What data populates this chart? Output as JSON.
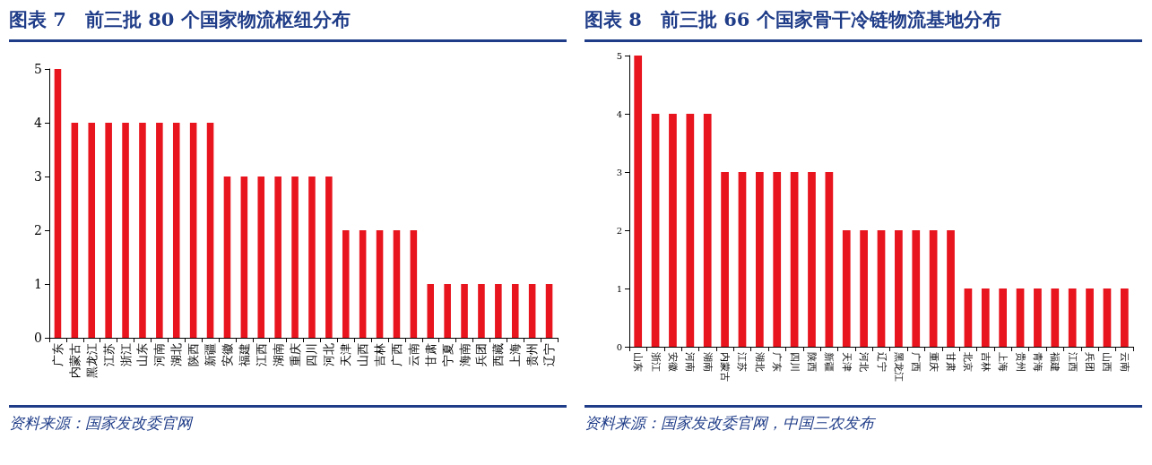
{
  "chart_data": [
    {
      "type": "bar",
      "title": "图表 7　前三批 80 个国家物流枢纽分布",
      "categories": [
        "广东",
        "内蒙古",
        "黑龙江",
        "江苏",
        "浙江",
        "山东",
        "河南",
        "湖北",
        "陕西",
        "新疆",
        "安徽",
        "福建",
        "江西",
        "湖南",
        "重庆",
        "四川",
        "河北",
        "天津",
        "山西",
        "吉林",
        "广西",
        "云南",
        "甘肃",
        "宁夏",
        "海南",
        "兵团",
        "西藏",
        "上海",
        "贵州",
        "辽宁"
      ],
      "values": [
        5,
        4,
        4,
        4,
        4,
        4,
        4,
        4,
        4,
        4,
        3,
        3,
        3,
        3,
        3,
        3,
        3,
        2,
        2,
        2,
        2,
        2,
        1,
        1,
        1,
        1,
        1,
        1,
        1,
        1
      ],
      "color": "#e8141e",
      "ylim": [
        0,
        5
      ],
      "yticks": [
        0,
        1,
        2,
        3,
        4,
        5
      ],
      "grid": false,
      "annotations": [
        "资料来源：国家发改委官网"
      ]
    },
    {
      "type": "bar",
      "title": "图表 8　前三批 66 个国家骨干冷链物流基地分布",
      "categories": [
        "山东",
        "浙江",
        "安徽",
        "河南",
        "湖南",
        "内蒙古",
        "江苏",
        "湖北",
        "广东",
        "四川",
        "陕西",
        "新疆",
        "天津",
        "河北",
        "辽宁",
        "黑龙江",
        "广西",
        "重庆",
        "甘肃",
        "北京",
        "吉林",
        "上海",
        "贵州",
        "青海",
        "福建",
        "江西",
        "兵团",
        "山西",
        "云南"
      ],
      "values": [
        5,
        4,
        4,
        4,
        4,
        3,
        3,
        3,
        3,
        3,
        3,
        3,
        2,
        2,
        2,
        2,
        2,
        2,
        2,
        1,
        1,
        1,
        1,
        1,
        1,
        1,
        1,
        1,
        1
      ],
      "color": "#e8141e",
      "ylim": [
        0,
        5
      ],
      "yticks": [
        0,
        1,
        2,
        3,
        4,
        5
      ],
      "grid": false,
      "annotations": [
        "资料来源：国家发改委官网，中国三农发布"
      ]
    }
  ]
}
